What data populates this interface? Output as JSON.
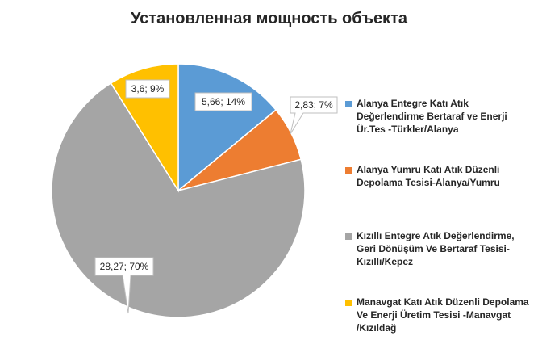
{
  "chart_data": {
    "type": "pie",
    "title": "Установленная мощность объекта",
    "categories": [
      "Alanya Entegre Katı Atık Değerlendirme Bertaraf ve Enerji Ür.Tes -Türkler/Alanya",
      "Alanya Yumru Katı Atık Düzenli Depolama Tesisi-Alanya/Yumru",
      "Kızıllı Entegre Atık Değerlendirme, Geri Dönüşüm Ve Bertaraf Tesisi-Kızıllı/Kepez",
      "Manavgat Katı Atık Düzenli Depolama Ve Enerji Üretim Tesisi -Manavgat /Kızıldağ"
    ],
    "values": [
      5.66,
      2.83,
      28.27,
      3.6
    ],
    "data_labels": [
      "5,66; 14%",
      "2,83; 7%",
      "28,27; 70%",
      "3,6; 9%"
    ],
    "colors": [
      "#5b9bd5",
      "#ed7d31",
      "#a5a5a5",
      "#ffc000"
    ],
    "legend_position": "right"
  }
}
